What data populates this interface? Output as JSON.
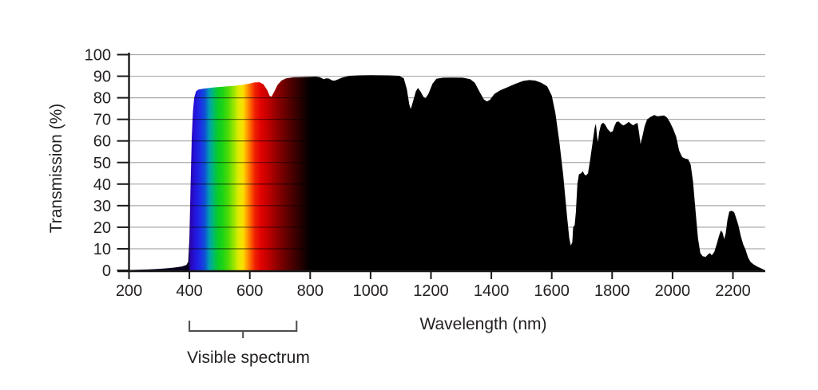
{
  "chart_data": {
    "type": "area",
    "title": "",
    "xlabel": "Wavelength (nm)",
    "ylabel": "Transmission (%)",
    "xlim": [
      200,
      2307
    ],
    "ylim": [
      0,
      100
    ],
    "grid": "horizontal",
    "x_ticks": [
      200,
      400,
      600,
      800,
      1000,
      1200,
      1400,
      1600,
      1800,
      2000,
      2200
    ],
    "y_ticks": [
      0,
      10,
      20,
      30,
      40,
      50,
      60,
      70,
      80,
      90,
      100
    ],
    "annotation": {
      "label": "Visible spectrum",
      "range_nm": [
        400,
        755
      ]
    },
    "colors": {
      "gridline": "#a8a8a8",
      "axis": "#1a1a1a",
      "text": "#231f20",
      "bracket": "#4d4d4d",
      "fill_infrared": "#000000"
    },
    "spectrum_gradient": [
      [
        396,
        "#08001c"
      ],
      [
        403,
        "#2a05ac"
      ],
      [
        418,
        "#2313dc"
      ],
      [
        438,
        "#1b31e6"
      ],
      [
        452,
        "#0c55d2"
      ],
      [
        466,
        "#00a0b4"
      ],
      [
        480,
        "#00bc6a"
      ],
      [
        495,
        "#0ccc28"
      ],
      [
        510,
        "#1cd414"
      ],
      [
        528,
        "#4eda08"
      ],
      [
        546,
        "#96e400"
      ],
      [
        562,
        "#dcec00"
      ],
      [
        578,
        "#ffdc00"
      ],
      [
        592,
        "#ff9800"
      ],
      [
        604,
        "#fc5a00"
      ],
      [
        618,
        "#f01e00"
      ],
      [
        636,
        "#e20202"
      ],
      [
        658,
        "#c60000"
      ],
      [
        682,
        "#9c0000"
      ],
      [
        712,
        "#700000"
      ],
      [
        742,
        "#480000"
      ],
      [
        772,
        "#220000"
      ],
      [
        800,
        "#000000"
      ]
    ],
    "series": [
      {
        "name": "Transmission",
        "points": [
          [
            200,
            0.2
          ],
          [
            260,
            0.4
          ],
          [
            300,
            0.7
          ],
          [
            330,
            1.0
          ],
          [
            355,
            1.4
          ],
          [
            375,
            1.8
          ],
          [
            390,
            2.5
          ],
          [
            396,
            4
          ],
          [
            400,
            15
          ],
          [
            404,
            40
          ],
          [
            408,
            62
          ],
          [
            412,
            74
          ],
          [
            416,
            80
          ],
          [
            422,
            83
          ],
          [
            430,
            83.8
          ],
          [
            450,
            84.3
          ],
          [
            480,
            84.8
          ],
          [
            510,
            85.1
          ],
          [
            545,
            85.5
          ],
          [
            575,
            86
          ],
          [
            600,
            86.6
          ],
          [
            615,
            87.1
          ],
          [
            632,
            87.2
          ],
          [
            645,
            86.3
          ],
          [
            658,
            83.5
          ],
          [
            666,
            80.8
          ],
          [
            672,
            80.5
          ],
          [
            680,
            82.5
          ],
          [
            692,
            86
          ],
          [
            705,
            88
          ],
          [
            720,
            89
          ],
          [
            745,
            89.5
          ],
          [
            775,
            89.6
          ],
          [
            800,
            89.7
          ],
          [
            820,
            89.8
          ],
          [
            832,
            89.5
          ],
          [
            845,
            88.6
          ],
          [
            853,
            89
          ],
          [
            862,
            88.9
          ],
          [
            872,
            88.1
          ],
          [
            880,
            87.9
          ],
          [
            890,
            88.4
          ],
          [
            905,
            89.3
          ],
          [
            930,
            90.2
          ],
          [
            960,
            90.4
          ],
          [
            1000,
            90.5
          ],
          [
            1060,
            90.4
          ],
          [
            1095,
            90.2
          ],
          [
            1110,
            89
          ],
          [
            1120,
            84
          ],
          [
            1128,
            77
          ],
          [
            1133,
            74.8
          ],
          [
            1140,
            78
          ],
          [
            1150,
            83
          ],
          [
            1157,
            84.6
          ],
          [
            1165,
            83
          ],
          [
            1175,
            80.5
          ],
          [
            1182,
            79.7
          ],
          [
            1192,
            82
          ],
          [
            1205,
            86.5
          ],
          [
            1218,
            88.8
          ],
          [
            1240,
            89.3
          ],
          [
            1270,
            89.4
          ],
          [
            1305,
            89.3
          ],
          [
            1330,
            88.6
          ],
          [
            1345,
            87
          ],
          [
            1362,
            82.5
          ],
          [
            1375,
            79.3
          ],
          [
            1385,
            78.3
          ],
          [
            1395,
            79
          ],
          [
            1410,
            81.8
          ],
          [
            1430,
            83.5
          ],
          [
            1455,
            85
          ],
          [
            1480,
            86.5
          ],
          [
            1505,
            87.8
          ],
          [
            1525,
            88.2
          ],
          [
            1545,
            88
          ],
          [
            1565,
            87
          ],
          [
            1585,
            85.3
          ],
          [
            1600,
            81
          ],
          [
            1612,
            73
          ],
          [
            1625,
            60
          ],
          [
            1638,
            44
          ],
          [
            1650,
            26
          ],
          [
            1658,
            15
          ],
          [
            1663,
            11.5
          ],
          [
            1668,
            13
          ],
          [
            1671,
            20
          ],
          [
            1676,
            21
          ],
          [
            1680,
            27
          ],
          [
            1685,
            40
          ],
          [
            1690,
            44.5
          ],
          [
            1697,
            45
          ],
          [
            1703,
            46
          ],
          [
            1708,
            44.5
          ],
          [
            1714,
            44
          ],
          [
            1720,
            45
          ],
          [
            1727,
            51
          ],
          [
            1736,
            60
          ],
          [
            1742,
            66
          ],
          [
            1746,
            68
          ],
          [
            1750,
            62
          ],
          [
            1753,
            59.5
          ],
          [
            1757,
            64
          ],
          [
            1763,
            67.5
          ],
          [
            1770,
            68.5
          ],
          [
            1777,
            67.5
          ],
          [
            1785,
            65.5
          ],
          [
            1795,
            64
          ],
          [
            1802,
            64.5
          ],
          [
            1808,
            67
          ],
          [
            1814,
            68.8
          ],
          [
            1822,
            69
          ],
          [
            1830,
            67.8
          ],
          [
            1838,
            67.2
          ],
          [
            1847,
            68
          ],
          [
            1855,
            68.8
          ],
          [
            1862,
            68
          ],
          [
            1870,
            67.2
          ],
          [
            1877,
            68
          ],
          [
            1884,
            68.3
          ],
          [
            1890,
            63
          ],
          [
            1894,
            58.5
          ],
          [
            1900,
            62
          ],
          [
            1908,
            67
          ],
          [
            1916,
            70
          ],
          [
            1928,
            71.2
          ],
          [
            1940,
            72
          ],
          [
            1950,
            71.4
          ],
          [
            1962,
            71.6
          ],
          [
            1972,
            71.8
          ],
          [
            1982,
            70.8
          ],
          [
            1992,
            68.5
          ],
          [
            2002,
            65.5
          ],
          [
            2012,
            62
          ],
          [
            2022,
            55.5
          ],
          [
            2032,
            52.5
          ],
          [
            2042,
            51.8
          ],
          [
            2052,
            51.5
          ],
          [
            2060,
            49
          ],
          [
            2068,
            41
          ],
          [
            2076,
            28
          ],
          [
            2084,
            15
          ],
          [
            2092,
            8
          ],
          [
            2100,
            6.5
          ],
          [
            2110,
            6.3
          ],
          [
            2118,
            7.5
          ],
          [
            2124,
            8
          ],
          [
            2130,
            7
          ],
          [
            2138,
            8.5
          ],
          [
            2146,
            12
          ],
          [
            2154,
            16
          ],
          [
            2160,
            18.5
          ],
          [
            2166,
            17.5
          ],
          [
            2171,
            14.5
          ],
          [
            2176,
            17
          ],
          [
            2182,
            23.5
          ],
          [
            2188,
            27.3
          ],
          [
            2196,
            27.6
          ],
          [
            2204,
            27
          ],
          [
            2210,
            24.5
          ],
          [
            2218,
            21
          ],
          [
            2226,
            16
          ],
          [
            2234,
            12
          ],
          [
            2242,
            9.5
          ],
          [
            2250,
            6
          ],
          [
            2258,
            4
          ],
          [
            2268,
            2.8
          ],
          [
            2280,
            1.8
          ],
          [
            2295,
            0.8
          ],
          [
            2307,
            0
          ]
        ]
      }
    ]
  }
}
